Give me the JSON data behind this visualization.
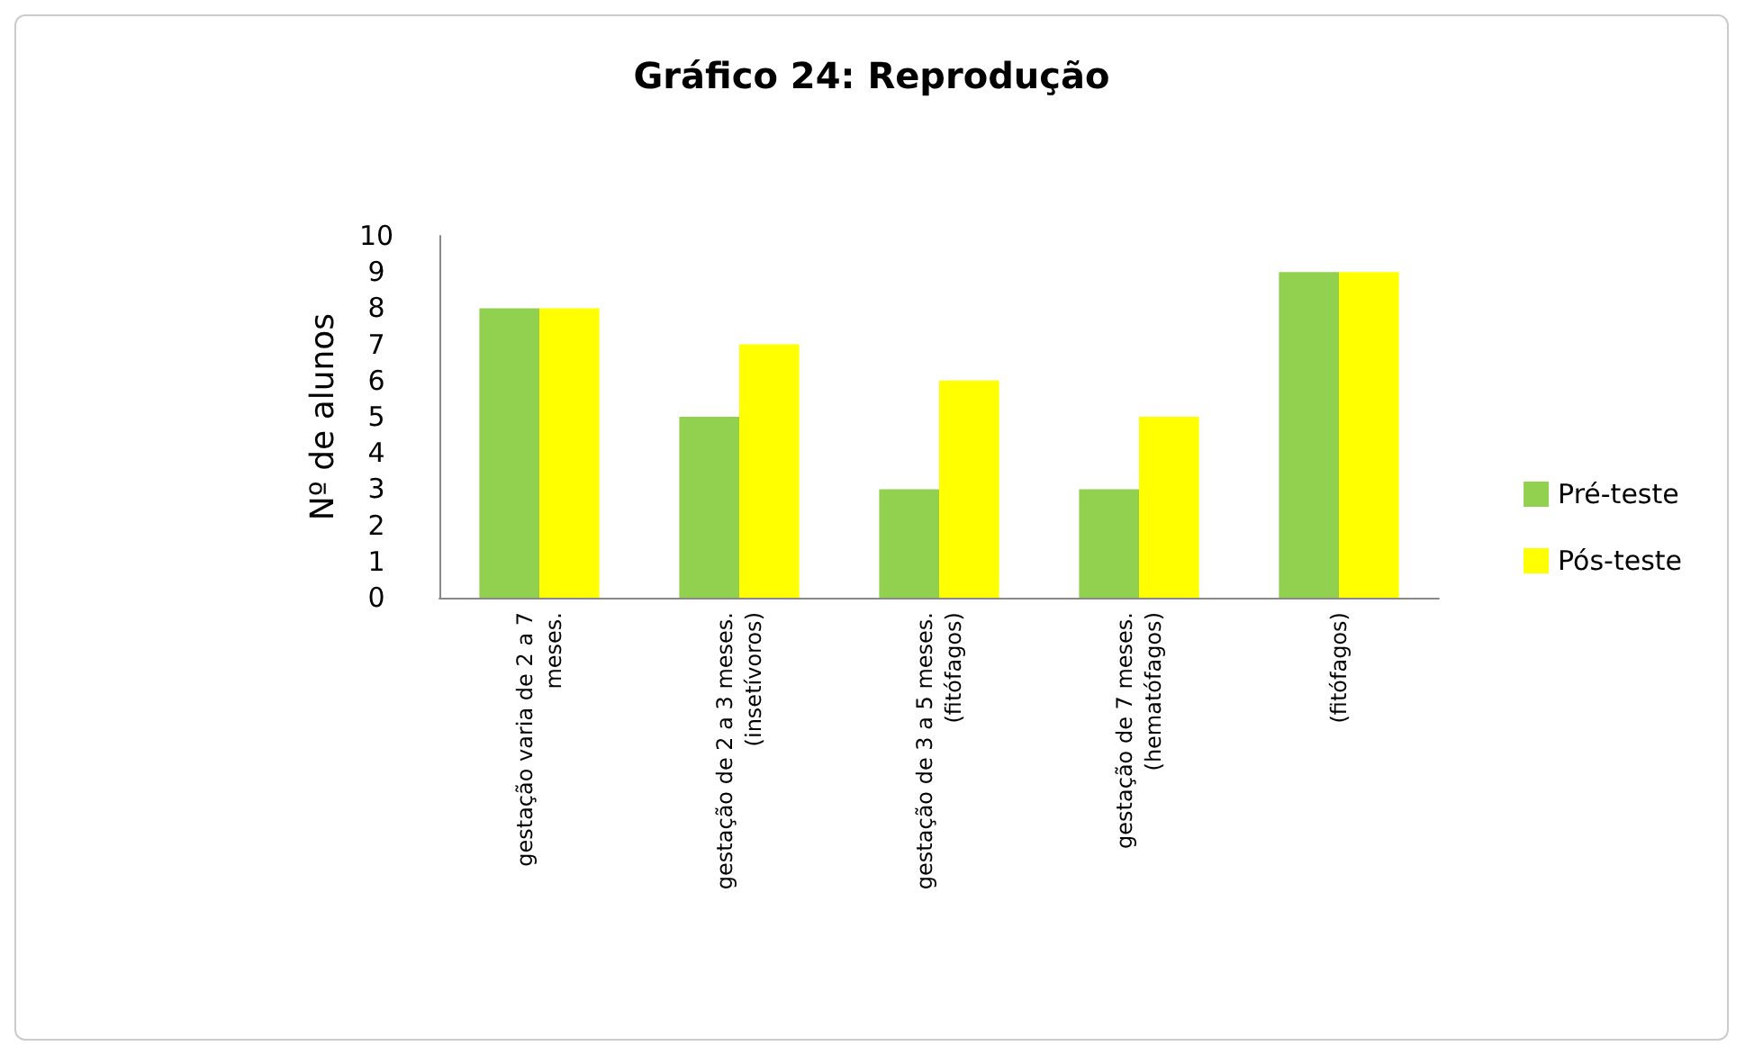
{
  "chart_data": {
    "type": "bar",
    "title": "Gráfico 24: Reprodução",
    "ylabel": "Nº de alunos",
    "categories": [
      "gestação varia de 2 a 7\nmeses.",
      "gestação de 2 a 3 meses.\n(insetívoros)",
      "gestação de 3 a 5 meses.\n(fitófagos)",
      "gestação de 7 meses.\n(hematófagos)",
      "(fitófagos)"
    ],
    "series": [
      {
        "name": "Pré-teste",
        "color": "#92d050",
        "values": [
          8,
          5,
          3,
          3,
          9
        ]
      },
      {
        "name": "Pós-teste",
        "color": "#ffff00",
        "values": [
          8,
          7,
          6,
          5,
          9
        ]
      }
    ],
    "ylim": [
      0,
      10
    ],
    "yticks": [
      0,
      1,
      2,
      3,
      4,
      5,
      6,
      7,
      8,
      9,
      10
    ],
    "grid": false,
    "legend": "right"
  }
}
